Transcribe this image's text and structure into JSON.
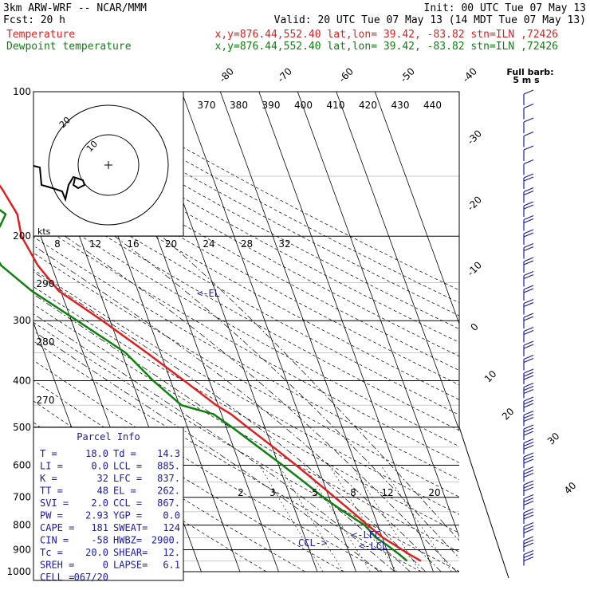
{
  "header": {
    "title": "3km ARW-WRF -- NCAR/MMM",
    "init": "Init: 00 UTC Tue 07 May 13",
    "fcst_label": "Fcst:",
    "fcst_value": "20 h",
    "valid": "Valid: 20 UTC Tue 07 May 13 (14 MDT Tue 07 May 13)",
    "temp_label": "Temperature",
    "temp_loc": "x,y=876.44,552.40   lat,lon= 39.42, -83.82  stn=ILN ,72426",
    "dew_label": "Dewpoint temperature",
    "dew_loc": "x,y=876.44,552.40   lat,lon= 39.42, -83.82  stn=ILN ,72426",
    "temp_color": "#e02020",
    "dew_color": "#108010"
  },
  "wind_barb_label_1": "Full barb:",
  "wind_barb_label_2": "5 m s",
  "hodograph": {
    "kts_label": "kts",
    "ring_labels": [
      "10",
      "20"
    ],
    "speed_labels": [
      "8",
      "12",
      "16",
      "20",
      "24",
      "28",
      "32"
    ]
  },
  "parcel": {
    "title": "Parcel Info",
    "rows": [
      [
        "T   =",
        "18.0",
        "Td  =",
        "14.3"
      ],
      [
        "LI  =",
        "0.0",
        "LCL =",
        "885."
      ],
      [
        "K   =",
        "32",
        "LFC =",
        "837."
      ],
      [
        "TT  =",
        "48",
        "EL  =",
        "262."
      ],
      [
        "SVI =",
        "2.0",
        "CCL =",
        "867."
      ],
      [
        "PW  =",
        "2.93",
        "YGP =",
        "0.0"
      ],
      [
        "CAPE =",
        "181",
        "SWEAT=",
        "124"
      ],
      [
        "CIN  =",
        "-58",
        "HWBZ=",
        "2900."
      ],
      [
        "Tc  =",
        "20.0",
        "SHEAR=",
        "12."
      ],
      [
        "SREH =",
        "0",
        "LAPSE=",
        "6.1"
      ],
      [
        "CELL =",
        "067/20",
        "",
        ""
      ]
    ]
  },
  "levels": {
    "el": "<-EL",
    "lfc": "<-LFC",
    "lcl": "<-LCL",
    "ccl": "CCL->"
  },
  "chart_data": {
    "type": "line",
    "title": "",
    "ylabel": "",
    "y_scale": "log-pressure (hPa), inverted",
    "pressure_ticks": [
      100,
      200,
      300,
      400,
      500,
      600,
      700,
      800,
      900,
      1000
    ],
    "isotherm_labels": [
      -80,
      -70,
      -60,
      -50,
      -40,
      -30,
      -20,
      -10,
      0,
      10,
      20,
      30,
      40
    ],
    "theta_labels": [
      370,
      380,
      390,
      400,
      410,
      420,
      430,
      440
    ],
    "theta_left_labels": [
      290,
      280,
      270
    ],
    "mixing_ratio_labels": [
      2,
      3,
      5,
      8,
      12,
      20
    ],
    "series": [
      {
        "name": "Temperature",
        "pressure": [
          950,
          920,
          880,
          850,
          800,
          750,
          700,
          650,
          600,
          550,
          500,
          470,
          450,
          400,
          350,
          300,
          260,
          230,
          200,
          180,
          160,
          140,
          120,
          100
        ],
        "temperature": [
          17.8,
          15.4,
          12.5,
          10.2,
          7.4,
          4.6,
          1.5,
          -1.8,
          -5.5,
          -9.7,
          -14.5,
          -17.5,
          -20.5,
          -26.5,
          -33.5,
          -42.0,
          -50.5,
          -53.5,
          -55.0,
          -54.0,
          -55.5,
          -58.0,
          -61.5,
          -63.0
        ]
      },
      {
        "name": "Dewpoint temperature",
        "pressure": [
          950,
          920,
          880,
          850,
          800,
          750,
          700,
          650,
          600,
          550,
          500,
          470,
          450,
          400,
          350,
          300,
          260,
          230,
          210,
          180,
          160,
          140,
          120,
          100
        ],
        "dewpoint": [
          14.2,
          12.8,
          10.5,
          8.4,
          6.6,
          2.5,
          -1.5,
          -5.0,
          -9.0,
          -13.5,
          -18.5,
          -22.0,
          -29.5,
          -34.5,
          -39.0,
          -48.5,
          -57.5,
          -63.0,
          -64.0,
          -57.0,
          -63.5,
          -69.0,
          -70.0,
          -70.5
        ]
      }
    ],
    "wind_barbs_right": true
  }
}
